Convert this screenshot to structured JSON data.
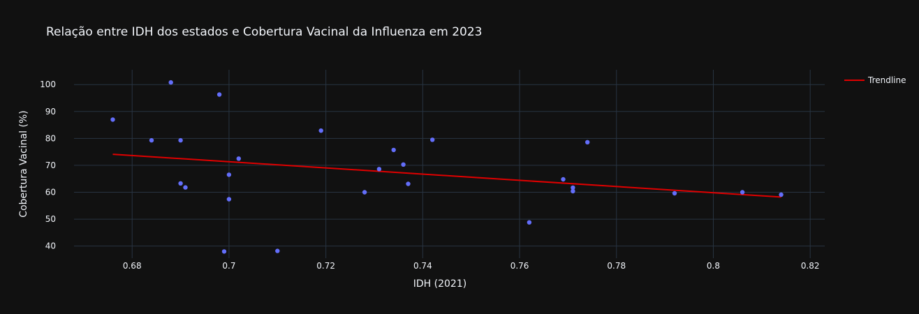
{
  "chart_data": {
    "type": "scatter",
    "title": "Relação entre IDH dos estados e Cobertura Vacinal da Influenza em 2023",
    "xlabel": "IDH (2021)",
    "ylabel": "Cobertura Vacinal (%)",
    "xlim": [
      0.668,
      0.823
    ],
    "ylim": [
      35.5,
      105.5
    ],
    "xticks": [
      0.68,
      0.7,
      0.72,
      0.74,
      0.76,
      0.78,
      0.8,
      0.82
    ],
    "xtick_labels": [
      "0.68",
      "0.7",
      "0.72",
      "0.74",
      "0.76",
      "0.78",
      "0.8",
      "0.82"
    ],
    "yticks": [
      40,
      50,
      60,
      70,
      80,
      90,
      100
    ],
    "ytick_labels": [
      "40",
      "50",
      "60",
      "70",
      "80",
      "90",
      "100"
    ],
    "grid": true,
    "legend_position": "top-right",
    "colors": {
      "points": "#636efa",
      "trendline": "#e00000",
      "background": "#111111",
      "grid": "#283442"
    },
    "points": [
      {
        "x": 0.676,
        "y": 87.0
      },
      {
        "x": 0.684,
        "y": 79.3
      },
      {
        "x": 0.688,
        "y": 100.8
      },
      {
        "x": 0.69,
        "y": 79.3
      },
      {
        "x": 0.69,
        "y": 63.3
      },
      {
        "x": 0.691,
        "y": 61.8
      },
      {
        "x": 0.698,
        "y": 96.3
      },
      {
        "x": 0.699,
        "y": 38.0
      },
      {
        "x": 0.7,
        "y": 66.5
      },
      {
        "x": 0.7,
        "y": 57.4
      },
      {
        "x": 0.702,
        "y": 72.5
      },
      {
        "x": 0.71,
        "y": 38.2
      },
      {
        "x": 0.719,
        "y": 82.9
      },
      {
        "x": 0.728,
        "y": 60.0
      },
      {
        "x": 0.731,
        "y": 68.6
      },
      {
        "x": 0.734,
        "y": 75.7
      },
      {
        "x": 0.736,
        "y": 70.3
      },
      {
        "x": 0.737,
        "y": 63.1
      },
      {
        "x": 0.742,
        "y": 79.5
      },
      {
        "x": 0.762,
        "y": 48.8
      },
      {
        "x": 0.769,
        "y": 64.8
      },
      {
        "x": 0.771,
        "y": 61.7
      },
      {
        "x": 0.771,
        "y": 60.4
      },
      {
        "x": 0.774,
        "y": 78.6
      },
      {
        "x": 0.792,
        "y": 59.6
      },
      {
        "x": 0.806,
        "y": 60.0
      },
      {
        "x": 0.814,
        "y": 59.1
      }
    ],
    "series": [
      {
        "name": "Trendline",
        "type": "line",
        "x": [
          0.676,
          0.814
        ],
        "y": [
          74.1,
          58.2
        ]
      }
    ]
  }
}
